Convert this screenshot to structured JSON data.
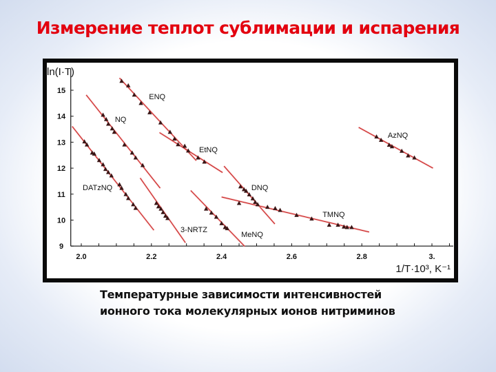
{
  "slide": {
    "title": "Измерение теплот сублимации и испарения",
    "caption_line1": "Температурные зависимости интенсивностей",
    "caption_line2": "ионного тока молекулярных ионов нитриминов",
    "title_color": "#e3000f"
  },
  "chart_data": {
    "type": "scatter",
    "title": "",
    "xlabel": "1/T·10³, K⁻¹",
    "ylabel": "ln(I·T)",
    "xlim": [
      1.97,
      3.06
    ],
    "ylim": [
      9,
      15.7
    ],
    "xticks": [
      2.0,
      2.2,
      2.4,
      2.6,
      2.8,
      3.0
    ],
    "xtick_labels": [
      "2.0",
      "2.2",
      "2.4",
      "2.6",
      "2.8",
      "3."
    ],
    "yticks": [
      9,
      10,
      11,
      12,
      13,
      14,
      15
    ],
    "ytick_labels": [
      "9",
      "10",
      "11",
      "12",
      "13",
      "14",
      "15"
    ],
    "grid": false,
    "marker_color": "#3a1616",
    "line_color": "#c81e1e",
    "series": [
      {
        "name": "ENQ",
        "label_at": [
          2.193,
          14.76
        ],
        "fit": [
          [
            2.109,
            15.47
          ],
          [
            2.328,
            12.29
          ]
        ],
        "x": [
          2.115,
          2.134,
          2.151,
          2.17,
          2.195,
          2.226,
          2.253,
          2.266,
          2.276
        ],
        "y": [
          15.35,
          15.18,
          14.82,
          14.5,
          14.14,
          13.75,
          13.39,
          13.13,
          12.91
        ]
      },
      {
        "name": "EtNQ",
        "label_at": [
          2.336,
          12.72
        ],
        "fit": [
          [
            2.223,
            13.37
          ],
          [
            2.403,
            11.83
          ]
        ],
        "x": [
          2.295,
          2.305,
          2.333,
          2.351
        ],
        "y": [
          12.85,
          12.67,
          12.4,
          12.24
        ]
      },
      {
        "name": "NQ",
        "label_at": [
          2.096,
          13.89
        ],
        "fit": [
          [
            2.014,
            14.82
          ],
          [
            2.225,
            11.23
          ]
        ],
        "x": [
          2.062,
          2.071,
          2.077,
          2.088,
          2.094,
          2.123,
          2.145,
          2.155,
          2.175
        ],
        "y": [
          14.05,
          13.88,
          13.7,
          13.52,
          13.39,
          12.9,
          12.59,
          12.4,
          12.11
        ]
      },
      {
        "name": "DATzNQ",
        "label_at": [
          2.004,
          11.26
        ],
        "fit": [
          [
            1.974,
            13.61
          ],
          [
            2.207,
            9.61
          ]
        ],
        "x": [
          2.009,
          2.016,
          2.031,
          2.037,
          2.051,
          2.062,
          2.069,
          2.077,
          2.086,
          2.109,
          2.115,
          2.127,
          2.134,
          2.148,
          2.155
        ],
        "y": [
          13.02,
          12.9,
          12.59,
          12.55,
          12.3,
          12.14,
          11.96,
          11.84,
          11.71,
          11.37,
          11.23,
          10.99,
          10.84,
          10.6,
          10.46
        ]
      },
      {
        "name": "3-NRTZ",
        "label_at": [
          2.283,
          9.64
        ],
        "fit": [
          [
            2.168,
            11.62
          ],
          [
            2.297,
            9.13
          ]
        ],
        "x": [
          2.214,
          2.22,
          2.227,
          2.233,
          2.24,
          2.246
        ],
        "y": [
          10.65,
          10.52,
          10.43,
          10.3,
          10.16,
          10.07
        ]
      },
      {
        "name": "MeNQ",
        "label_at": [
          2.456,
          9.46
        ],
        "fit": [
          [
            2.312,
            11.14
          ],
          [
            2.466,
            8.99
          ]
        ],
        "x": [
          2.356,
          2.371,
          2.385,
          2.4,
          2.41,
          2.416
        ],
        "y": [
          10.43,
          10.28,
          10.12,
          9.87,
          9.72,
          9.68
        ]
      },
      {
        "name": "DNQ",
        "label_at": [
          2.485,
          11.26
        ],
        "fit": [
          [
            2.407,
            12.08
          ],
          [
            2.552,
            9.85
          ]
        ],
        "x": [
          2.454,
          2.464,
          2.47,
          2.479,
          2.489,
          2.496,
          2.503
        ],
        "y": [
          11.29,
          11.18,
          11.12,
          10.98,
          10.83,
          10.69,
          10.6
        ]
      },
      {
        "name": "TMNQ",
        "label_at": [
          2.688,
          10.23
        ],
        "fit": [
          [
            2.4,
            10.89
          ],
          [
            2.821,
            9.54
          ]
        ],
        "x": [
          2.45,
          2.531,
          2.553,
          2.567,
          2.614,
          2.657,
          2.707,
          2.732,
          2.749,
          2.758,
          2.771
        ],
        "y": [
          10.65,
          10.5,
          10.45,
          10.38,
          10.19,
          10.05,
          9.81,
          9.81,
          9.74,
          9.72,
          9.72
        ]
      },
      {
        "name": "AzNQ",
        "label_at": [
          2.874,
          13.28
        ],
        "fit": [
          [
            2.791,
            13.57
          ],
          [
            3.003,
            12.0
          ]
        ],
        "x": [
          2.842,
          2.855,
          2.878,
          2.886,
          2.914,
          2.932,
          2.95
        ],
        "y": [
          13.21,
          13.08,
          12.89,
          12.83,
          12.66,
          12.48,
          12.4
        ]
      }
    ]
  }
}
